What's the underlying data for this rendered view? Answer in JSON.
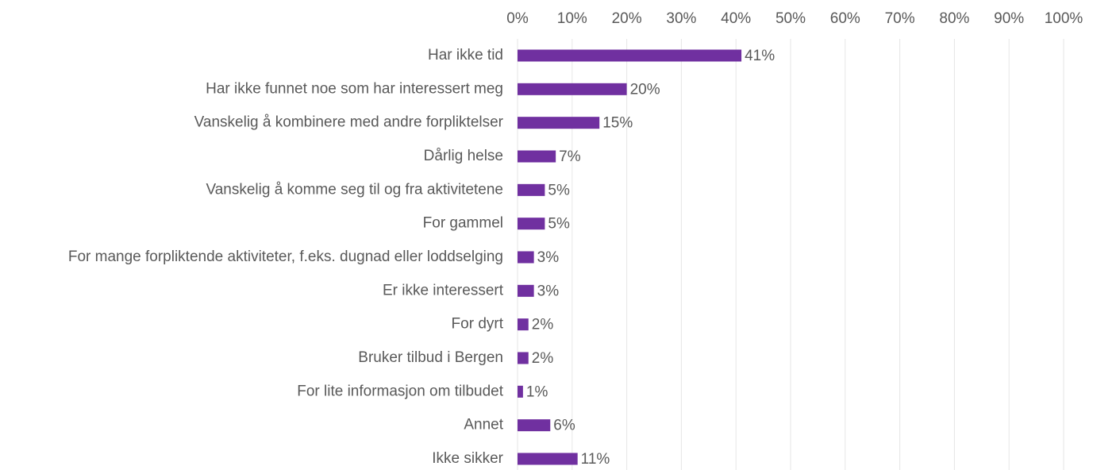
{
  "chart_data": {
    "type": "bar",
    "orientation": "horizontal",
    "categories": [
      "Har ikke tid",
      "Har ikke funnet noe som har interessert meg",
      "Vanskelig å kombinere med andre forpliktelser",
      "Dårlig helse",
      "Vanskelig å komme seg til og fra aktivitetene",
      "For gammel",
      "For mange forpliktende aktiviteter, f.eks. dugnad eller loddselging",
      "Er ikke interessert",
      "For dyrt",
      "Bruker tilbud i Bergen",
      "For lite informasjon om tilbudet",
      "Annet",
      "Ikke sikker"
    ],
    "values": [
      41,
      20,
      15,
      7,
      5,
      5,
      3,
      3,
      2,
      2,
      1,
      6,
      11
    ],
    "value_labels": [
      "41%",
      "20%",
      "15%",
      "7%",
      "5%",
      "5%",
      "3%",
      "3%",
      "2%",
      "2%",
      "1%",
      "6%",
      "11%"
    ],
    "color": "#7030a0",
    "xlim": [
      0,
      100
    ],
    "xticks": [
      {
        "value": 0,
        "label": "0%"
      },
      {
        "value": 10,
        "label": "10%"
      },
      {
        "value": 20,
        "label": "20%"
      },
      {
        "value": 30,
        "label": "30%"
      },
      {
        "value": 40,
        "label": "40%"
      },
      {
        "value": 50,
        "label": "50%"
      },
      {
        "value": 60,
        "label": "60%"
      },
      {
        "value": 70,
        "label": "70%"
      },
      {
        "value": 80,
        "label": "80%"
      },
      {
        "value": 90,
        "label": "90%"
      },
      {
        "value": 100,
        "label": "100%"
      }
    ],
    "grid": true
  }
}
